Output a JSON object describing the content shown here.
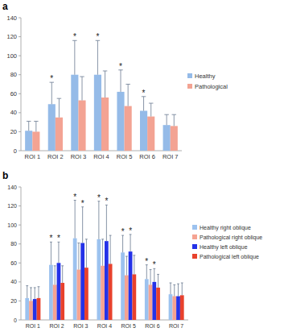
{
  "chart_data": [
    {
      "type": "bar",
      "title": "a",
      "categories": [
        "ROI 1",
        "ROI 2",
        "ROI 3",
        "ROI 4",
        "ROI 5",
        "ROI 6",
        "ROI 7"
      ],
      "series": [
        {
          "name": "Healthy",
          "color": "#95bbe8",
          "values": [
            21,
            49,
            80,
            80,
            62,
            42,
            27
          ],
          "errors": [
            10,
            23,
            36,
            36,
            23,
            15,
            11
          ],
          "significance": [
            null,
            "*",
            "*",
            "*",
            "*",
            "*",
            null
          ]
        },
        {
          "name": "Pathological",
          "color": "#f3a393",
          "values": [
            20,
            35,
            53,
            56,
            47,
            36,
            26
          ],
          "errors": [
            11,
            20,
            25,
            28,
            23,
            14,
            12
          ]
        }
      ],
      "ylim": [
        0,
        140
      ],
      "yticks": [
        0,
        20,
        40,
        60,
        80,
        100,
        120,
        140
      ],
      "grid": false,
      "legend": "right"
    },
    {
      "type": "bar",
      "title": "b",
      "categories": [
        "ROI 1",
        "ROI 2",
        "ROI 3",
        "ROI 4",
        "ROI 5",
        "ROI 6",
        "ROI 7"
      ],
      "series": [
        {
          "name": "Healthy right oblique",
          "color": "#9cc2ef",
          "values": [
            23,
            58,
            86,
            85,
            71,
            43,
            27
          ],
          "errors": [
            13,
            24,
            40,
            40,
            18,
            15,
            12
          ],
          "significance": [
            null,
            "*",
            "*",
            "*",
            "*",
            "*",
            null
          ]
        },
        {
          "name": "Pathological right oblique",
          "color": "#f5a392",
          "values": [
            20,
            37,
            53,
            57,
            47,
            37,
            25
          ],
          "errors": [
            14,
            20,
            28,
            28,
            20,
            16,
            12
          ]
        },
        {
          "name": "Healthy left oblique",
          "color": "#2432e8",
          "values": [
            22,
            60,
            81,
            83,
            72,
            40,
            25
          ],
          "errors": [
            12,
            22,
            38,
            38,
            18,
            14,
            13
          ],
          "significance": [
            null,
            "*",
            "*",
            "*",
            "*",
            "*",
            null
          ]
        },
        {
          "name": "Pathological left oblique",
          "color": "#e8412c",
          "values": [
            23,
            39,
            55,
            59,
            48,
            34,
            26
          ],
          "errors": [
            12,
            18,
            30,
            30,
            20,
            14,
            13
          ]
        }
      ],
      "ylim": [
        0,
        140
      ],
      "yticks": [
        0,
        20,
        40,
        60,
        80,
        100,
        120,
        140
      ],
      "grid": false,
      "legend": "right"
    }
  ]
}
